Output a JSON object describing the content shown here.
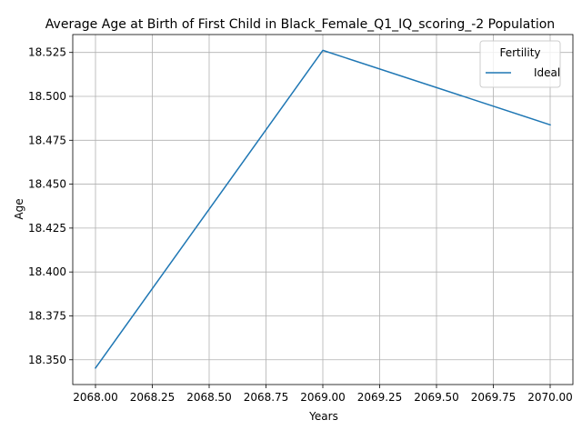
{
  "chart_data": {
    "type": "line",
    "title": "Average Age at Birth of First Child in Black_Female_Q1_IQ_scoring_-2 Population",
    "xlabel": "Years",
    "ylabel": "Age",
    "xlim": [
      2067.9,
      2070.1
    ],
    "ylim": [
      18.3359,
      18.5352
    ],
    "x_ticks": [
      2068.0,
      2068.25,
      2068.5,
      2068.75,
      2069.0,
      2069.25,
      2069.5,
      2069.75,
      2070.0
    ],
    "x_tick_labels": [
      "2068.00",
      "2068.25",
      "2068.50",
      "2068.75",
      "2069.00",
      "2069.25",
      "2069.50",
      "2069.75",
      "2070.00"
    ],
    "y_ticks": [
      18.35,
      18.375,
      18.4,
      18.425,
      18.45,
      18.475,
      18.5,
      18.525
    ],
    "y_tick_labels": [
      "18.350",
      "18.375",
      "18.400",
      "18.425",
      "18.450",
      "18.475",
      "18.500",
      "18.525"
    ],
    "grid": true,
    "legend": {
      "title": "Fertility",
      "position": "top-right"
    },
    "series": [
      {
        "name": "Ideal",
        "color": "#1f77b4",
        "x": [
          2068,
          2069,
          2070
        ],
        "y": [
          18.3453,
          18.5262,
          18.4838
        ]
      }
    ]
  }
}
